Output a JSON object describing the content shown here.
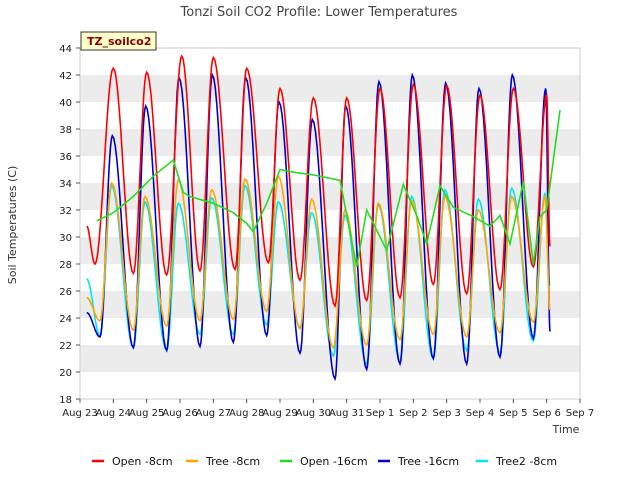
{
  "chart_data": {
    "type": "line",
    "title": "Tonzi Soil CO2 Profile: Lower Temperatures",
    "xlabel": "Time",
    "ylabel": "Soil Temperatures (C)",
    "tag": "TZ_soilco2",
    "ylim": [
      18,
      44
    ],
    "yticks": [
      18,
      20,
      22,
      24,
      26,
      28,
      30,
      32,
      34,
      36,
      38,
      40,
      42,
      44
    ],
    "xlim": [
      0,
      15
    ],
    "xticks": [
      "Aug 23",
      "Aug 24",
      "Aug 25",
      "Aug 26",
      "Aug 27",
      "Aug 28",
      "Aug 29",
      "Aug 30",
      "Aug 31",
      "Sep 1",
      "Sep 2",
      "Sep 3",
      "Sep 4",
      "Sep 5",
      "Sep 6",
      "Sep 7"
    ],
    "grid": "horizontal bands",
    "legend_position": "bottom",
    "diurnal_series": [
      {
        "name": "Open -8cm",
        "color": "#ff0000",
        "min_times": [
          0.45,
          1.6,
          2.6,
          3.6,
          4.65,
          5.65,
          6.6,
          7.65,
          8.6,
          9.6,
          10.6,
          11.6,
          12.6,
          13.6
        ],
        "max_times": [
          1.0,
          2.0,
          3.05,
          4.0,
          5.0,
          6.0,
          7.0,
          8.0,
          9.0,
          10.0,
          11.0,
          12.0,
          13.0,
          14.0
        ],
        "start": 30.8,
        "end": 29.3,
        "mins": [
          28.0,
          27.3,
          27.2,
          27.5,
          27.6,
          28.1,
          26.8,
          24.9,
          25.3,
          25.5,
          26.5,
          25.8,
          26.1,
          27.8
        ],
        "maxs": [
          42.5,
          42.2,
          43.4,
          43.3,
          42.5,
          41.0,
          40.3,
          40.3,
          41.0,
          41.3,
          41.2,
          40.5,
          41.0,
          40.5
        ]
      },
      {
        "name": "Tree -8cm",
        "color": "#ffa500",
        "min_times": [
          0.6,
          1.6,
          2.6,
          3.6,
          4.6,
          5.6,
          6.6,
          7.6,
          8.6,
          9.6,
          10.6,
          11.6,
          12.6,
          13.6
        ],
        "max_times": [
          0.95,
          1.95,
          2.95,
          3.95,
          4.95,
          5.95,
          6.95,
          7.95,
          8.95,
          9.95,
          10.95,
          11.95,
          12.95,
          13.95
        ],
        "start": 25.5,
        "end": 24.6,
        "mins": [
          23.8,
          23.1,
          23.4,
          23.8,
          23.9,
          24.5,
          23.2,
          21.8,
          22.0,
          22.4,
          22.8,
          22.6,
          22.9,
          23.7
        ],
        "maxs": [
          34.0,
          33.0,
          34.2,
          33.5,
          34.3,
          34.5,
          32.8,
          32.0,
          32.5,
          32.7,
          33.0,
          32.0,
          33.0,
          33.0
        ]
      },
      {
        "name": "Tree -16cm",
        "color": "#0000cc",
        "min_times": [
          0.6,
          1.6,
          2.6,
          3.6,
          4.6,
          5.6,
          6.6,
          7.65,
          8.6,
          9.6,
          10.6,
          11.6,
          12.6,
          13.6
        ],
        "max_times": [
          0.97,
          1.97,
          2.97,
          3.97,
          4.97,
          5.97,
          6.97,
          7.97,
          8.97,
          9.97,
          10.97,
          11.97,
          12.97,
          13.97
        ],
        "start": 24.4,
        "end": 23.0,
        "mins": [
          22.6,
          21.8,
          21.6,
          21.9,
          22.2,
          22.7,
          21.4,
          19.5,
          20.2,
          20.6,
          21.0,
          20.6,
          21.1,
          22.5
        ],
        "maxs": [
          37.5,
          39.7,
          41.8,
          42.0,
          41.8,
          40.0,
          38.7,
          39.7,
          41.5,
          42.0,
          41.4,
          41.0,
          42.0,
          41.0
        ]
      },
      {
        "name": "Tree2 -8cm",
        "color": "#00e5ee",
        "min_times": [
          0.6,
          1.6,
          2.6,
          3.6,
          4.6,
          5.6,
          6.6,
          7.6,
          8.6,
          9.6,
          10.6,
          11.6,
          12.6,
          13.6
        ],
        "max_times": [
          0.95,
          1.95,
          2.95,
          3.95,
          4.95,
          5.95,
          6.95,
          7.95,
          8.95,
          9.95,
          10.95,
          11.95,
          12.95,
          13.95
        ],
        "start": 26.9,
        "end": 26.4,
        "mins": [
          22.7,
          21.8,
          21.6,
          22.8,
          22.8,
          23.5,
          23.3,
          21.2,
          20.6,
          20.8,
          21.0,
          21.6,
          21.4,
          22.3
        ],
        "maxs": [
          33.8,
          32.6,
          32.5,
          32.9,
          33.8,
          32.6,
          31.8,
          31.6,
          32.4,
          33.0,
          33.5,
          32.8,
          33.6,
          33.2
        ]
      }
    ],
    "open16": {
      "name": "Open -16cm",
      "color": "#22dd22",
      "x": [
        0.5,
        1.0,
        1.6,
        2.2,
        2.8,
        3.1,
        3.3,
        4.0,
        4.6,
        5.0,
        5.2,
        5.6,
        6.0,
        6.4,
        7.0,
        7.8,
        8.3,
        8.6,
        9.2,
        9.7,
        10.1,
        10.4,
        10.8,
        11.2,
        11.8,
        12.3,
        12.6,
        12.9,
        13.3,
        13.6,
        13.8,
        14.0,
        14.4
      ],
      "y": [
        31.2,
        31.8,
        33.0,
        34.5,
        35.7,
        33.3,
        33.0,
        32.5,
        31.8,
        31.0,
        30.4,
        32.5,
        35.0,
        34.8,
        34.6,
        34.2,
        27.8,
        32.0,
        29.0,
        33.9,
        31.6,
        29.5,
        33.8,
        32.2,
        31.5,
        30.8,
        31.6,
        29.5,
        34.1,
        28.0,
        31.5,
        32.0,
        39.4
      ]
    }
  }
}
